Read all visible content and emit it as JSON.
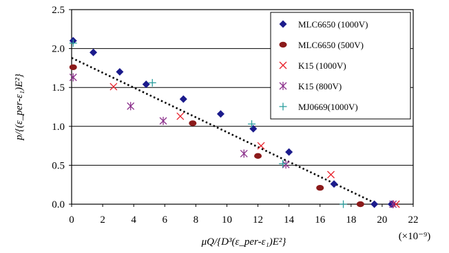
{
  "chart_data": {
    "type": "scatter",
    "title": "",
    "xlabel": "μQ/{D³(ε_per-ε₁)E²}",
    "ylabel": "p/{(ε_per-ε₁)E²}",
    "x_multiplier_label": "(×10⁻⁹)",
    "xlim": [
      0,
      22
    ],
    "ylim": [
      0,
      2.5
    ],
    "x_ticks": [
      0,
      2,
      4,
      6,
      8,
      10,
      12,
      14,
      16,
      18,
      20,
      22
    ],
    "y_ticks": [
      0.0,
      0.5,
      1.0,
      1.5,
      2.0,
      2.5
    ],
    "x_tick_labels": [
      "0",
      "2",
      "4",
      "6",
      "8",
      "10",
      "12",
      "14",
      "16",
      "18",
      "20",
      "22"
    ],
    "y_tick_labels": [
      "0.0",
      "0.5",
      "1.0",
      "1.5",
      "2.0",
      "2.5"
    ],
    "grid": "horizontal",
    "legend_position": "top-right",
    "series": [
      {
        "name": "MLC6650 (1000V)",
        "marker": "diamond",
        "color": "#1b1b8c",
        "points": [
          [
            0.1,
            2.1
          ],
          [
            1.4,
            1.95
          ],
          [
            3.1,
            1.7
          ],
          [
            4.8,
            1.54
          ],
          [
            7.2,
            1.35
          ],
          [
            9.6,
            1.16
          ],
          [
            11.7,
            0.97
          ],
          [
            14.0,
            0.67
          ],
          [
            16.9,
            0.26
          ],
          [
            19.5,
            0.0
          ],
          [
            20.6,
            0.0
          ]
        ]
      },
      {
        "name": "MLC6650 (500V)",
        "marker": "circle",
        "color": "#8b1a1a",
        "points": [
          [
            0.1,
            1.76
          ],
          [
            7.8,
            1.04
          ],
          [
            12.0,
            0.62
          ],
          [
            16.0,
            0.21
          ],
          [
            18.6,
            0.0
          ]
        ]
      },
      {
        "name": "K15 (1000V)",
        "marker": "x",
        "color": "#e8202a",
        "points": [
          [
            2.7,
            1.51
          ],
          [
            7.0,
            1.13
          ],
          [
            12.2,
            0.75
          ],
          [
            16.7,
            0.38
          ],
          [
            20.9,
            0.0
          ]
        ]
      },
      {
        "name": "K15 (800V)",
        "marker": "star",
        "color": "#8b2f8b",
        "points": [
          [
            0.1,
            1.63
          ],
          [
            3.8,
            1.26
          ],
          [
            5.9,
            1.07
          ],
          [
            11.1,
            0.65
          ],
          [
            13.8,
            0.51
          ],
          [
            20.7,
            0.0
          ]
        ]
      },
      {
        "name": "MJ0669(1000V)",
        "marker": "plus",
        "color": "#2a9d9d",
        "points": [
          [
            0.1,
            2.07
          ],
          [
            5.2,
            1.56
          ],
          [
            11.6,
            1.03
          ],
          [
            13.6,
            0.52
          ],
          [
            17.5,
            0.0
          ]
        ]
      }
    ],
    "trendline": {
      "style": "dotted",
      "color": "#000000",
      "points": [
        [
          0.0,
          1.88
        ],
        [
          19.7,
          0.0
        ]
      ]
    }
  }
}
